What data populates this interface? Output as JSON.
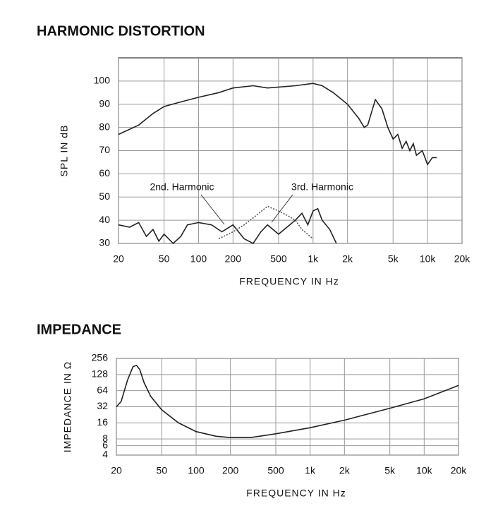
{
  "chart_data": [
    {
      "type": "line",
      "title": "HARMONIC DISTORTION",
      "xlabel": "FREQUENCY IN Hz",
      "ylabel": "SPL IN dB",
      "xlog": true,
      "ylog": false,
      "grid": true,
      "xlim": [
        20,
        20000
      ],
      "ylim": [
        30,
        110
      ],
      "xticks": [
        20,
        50,
        100,
        200,
        500,
        {
          "value": 1000,
          "label": "1k"
        },
        {
          "value": 2000,
          "label": "2k"
        },
        {
          "value": 5000,
          "label": "5k"
        },
        {
          "value": 10000,
          "label": "10k"
        },
        {
          "value": 20000,
          "label": "20k"
        }
      ],
      "yticks": [
        30,
        40,
        50,
        60,
        70,
        80,
        90,
        100
      ],
      "series": [
        {
          "color": "#222222",
          "x": [
            20,
            30,
            40,
            50,
            70,
            100,
            150,
            200,
            300,
            400,
            700,
            1000,
            1200,
            1500,
            2000,
            2500,
            2800,
            3000,
            3500,
            4000,
            4500,
            5000,
            5500,
            6000,
            6500,
            7000,
            7500,
            8000,
            9000,
            10000,
            11000,
            12000
          ],
          "values": [
            77,
            81,
            86,
            89,
            91,
            93,
            95,
            97,
            98,
            97,
            98,
            99,
            98,
            95,
            90,
            84,
            80,
            81,
            92,
            88,
            80,
            75,
            77,
            71,
            74,
            70,
            73,
            68,
            70,
            64,
            67,
            67
          ]
        },
        {
          "name": "2nd. Harmonic",
          "color": "#222222",
          "x": [
            20,
            25,
            30,
            35,
            40,
            45,
            50,
            60,
            70,
            80,
            100,
            130,
            160,
            200,
            250,
            300,
            350,
            400,
            500,
            700,
            800,
            900,
            1000,
            1100,
            1200,
            1400,
            1600
          ],
          "values": [
            38,
            37,
            39,
            33,
            36,
            31,
            34,
            30,
            33,
            38,
            39,
            38,
            35,
            38,
            32,
            30,
            35,
            38,
            34,
            40,
            43,
            38,
            44,
            45,
            40,
            36,
            30
          ]
        },
        {
          "name": "3rd. Harmonic",
          "color": "#555555",
          "style": "dotted",
          "x": [
            150,
            200,
            250,
            300,
            400,
            500,
            600,
            700,
            800,
            1000
          ],
          "values": [
            32,
            35,
            38,
            41,
            46,
            44,
            42,
            40,
            36,
            32
          ]
        }
      ]
    },
    {
      "type": "line",
      "title": "IMPEDANCE",
      "xlabel": "FREQUENCY IN Hz",
      "ylabel": "IMPEDANCE IN Ω",
      "xlog": true,
      "ylog": true,
      "grid": true,
      "xlim": [
        20,
        20000
      ],
      "ylim": [
        4,
        256
      ],
      "xticks": [
        20,
        50,
        100,
        200,
        500,
        {
          "value": 1000,
          "label": "1k"
        },
        {
          "value": 2000,
          "label": "2k"
        },
        {
          "value": 5000,
          "label": "5k"
        },
        {
          "value": 10000,
          "label": "10k"
        },
        {
          "value": 20000,
          "label": "20k"
        }
      ],
      "yticks": [
        4,
        6,
        8,
        16,
        32,
        64,
        128,
        256
      ],
      "series": [
        {
          "color": "#222222",
          "x": [
            20,
            22,
            25,
            28,
            30,
            32,
            35,
            40,
            50,
            70,
            100,
            150,
            200,
            300,
            500,
            1000,
            2000,
            5000,
            10000,
            20000
          ],
          "values": [
            32,
            40,
            100,
            180,
            190,
            160,
            90,
            50,
            28,
            16,
            11,
            9,
            8.5,
            8.5,
            10,
            13,
            18,
            30,
            45,
            80
          ]
        }
      ]
    }
  ]
}
